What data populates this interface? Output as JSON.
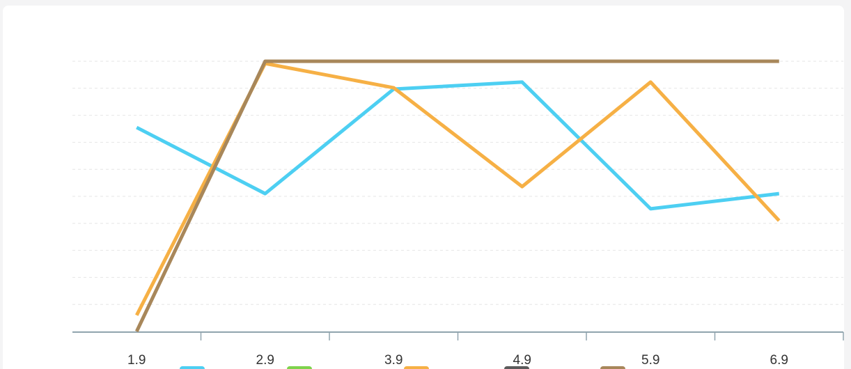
{
  "chart_data": {
    "type": "line",
    "categories": [
      "1.9",
      "2.9",
      "3.9",
      "4.9",
      "5.9",
      "6.9"
    ],
    "series": [
      {
        "color": "#4dcff2",
        "values": [
          7.55,
          5.1,
          8.97,
          9.23,
          4.54,
          5.1
        ]
      },
      {
        "color": "#7ed34c",
        "values": [
          null,
          null,
          null,
          null,
          null,
          null
        ]
      },
      {
        "color": "#f6b045",
        "values": [
          0.6,
          9.92,
          9.02,
          5.36,
          9.23,
          4.1
        ]
      },
      {
        "color": "#5b5b5b",
        "values": [
          null,
          null,
          null,
          null,
          null,
          null
        ]
      },
      {
        "color": "#a8875a",
        "values": [
          0,
          10,
          10,
          10,
          10,
          10
        ]
      }
    ],
    "ylim": [
      0,
      10
    ],
    "yticks": [
      1,
      2,
      3,
      4,
      5,
      6,
      7,
      8,
      9,
      10
    ],
    "grid": true
  }
}
